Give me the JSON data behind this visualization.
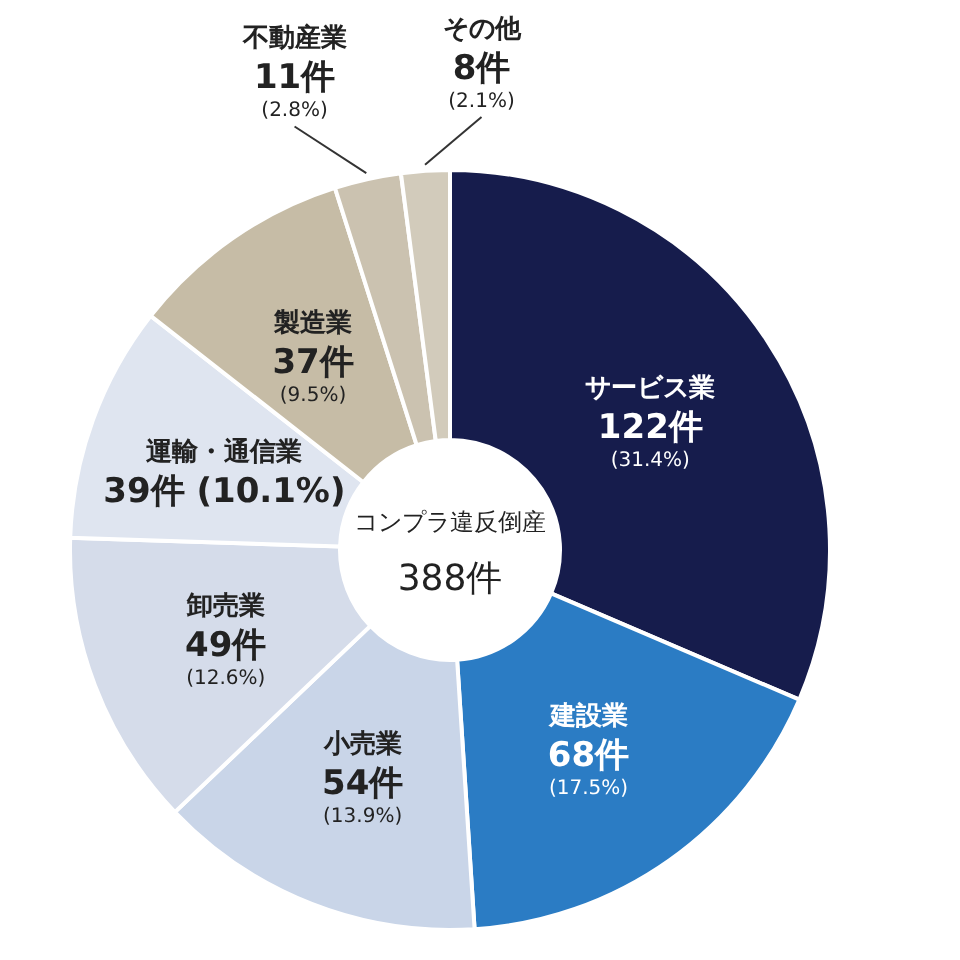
{
  "chart_data": {
    "type": "donut",
    "title": "コンプラ違反倒産",
    "annotations": [
      "388件"
    ],
    "categories": [
      "サービス業",
      "建設業",
      "小売業",
      "卸売業",
      "運輸・通信業",
      "製造業",
      "不動産業",
      "その他"
    ],
    "values": [
      122,
      68,
      54,
      49,
      39,
      37,
      11,
      8
    ],
    "colors": [
      "#161c4c",
      "#2b7cc4",
      "#c9d5e8",
      "#d5dcea",
      "#dfe5f0",
      "#c6bca6",
      "#cbc2b0",
      "#d2cbbb"
    ],
    "value_labels": [
      "122件\n(31.4%)",
      "68件\n(17.5%)",
      "54件\n(13.9%)",
      "49件\n(12.6%)",
      "39件 (10.1%)",
      "37件\n(9.5%)",
      "11件\n(2.8%)",
      "8件\n(2.1%)"
    ]
  }
}
